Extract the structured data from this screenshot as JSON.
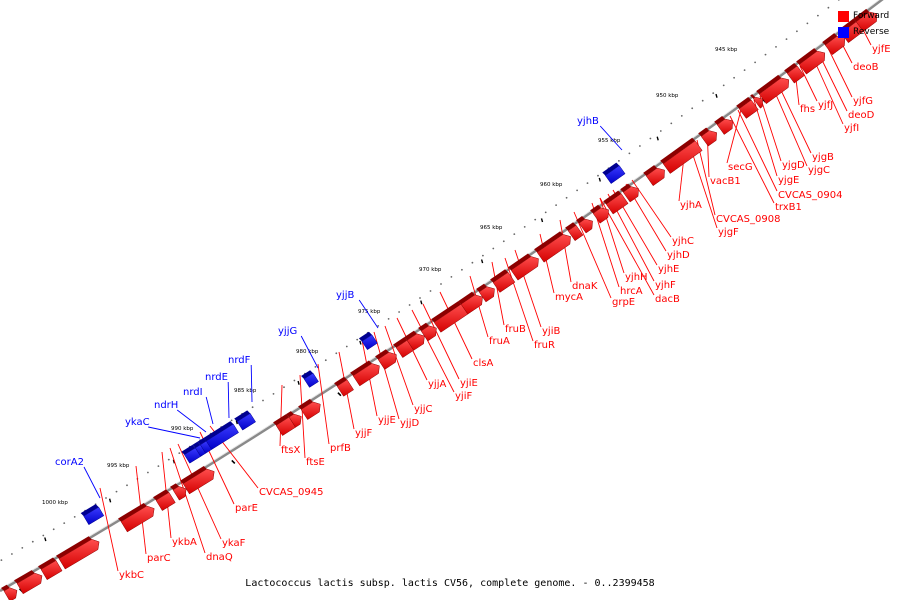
{
  "legend": {
    "forward_label": "Forward",
    "reverse_label": "Reverse",
    "forward_color": "#ff0000",
    "reverse_color": "#0000ff"
  },
  "caption": "Lactococcus lactis subsp. lactis CV56, complete genome. - 0..2399458",
  "scale_labels": [
    "945 kbp",
    "950 kbp",
    "955 kbp",
    "960 kbp",
    "965 kbp",
    "970 kbp",
    "975 kbp",
    "980 kbp",
    "985 kbp",
    "990 kbp",
    "995 kbp",
    "1000 kbp"
  ],
  "forward_labels": [
    "yjfE",
    "deoB",
    "yjfG",
    "deoD",
    "yjfI",
    "fhs",
    "yjfJ",
    "yjgB",
    "yjgC",
    "yjgD",
    "yjgE",
    "secG",
    "CVCAS_0904",
    "trxB1",
    "vacB1",
    "yjhA",
    "CVCAS_0908",
    "yjgF",
    "yjhC",
    "yjhD",
    "yjhE",
    "yjhH",
    "yjhF",
    "hrcA",
    "dacB",
    "dnaK",
    "grpE",
    "mycA",
    "yjiB",
    "fruB",
    "fruR",
    "fruA",
    "clsA",
    "yjiE",
    "yjjA",
    "yjiF",
    "yjjC",
    "yjjD",
    "yjjE",
    "yjjF",
    "prfB",
    "ftsE",
    "ftsX",
    "CVCAS_0945",
    "parE",
    "ykaF",
    "ykbA",
    "dnaQ",
    "parC",
    "ykbC"
  ],
  "reverse_labels": [
    "yjhB",
    "yjjB",
    "yjjG",
    "nrdF",
    "nrdE",
    "nrdI",
    "ndrH",
    "ykaC",
    "corA2"
  ]
}
